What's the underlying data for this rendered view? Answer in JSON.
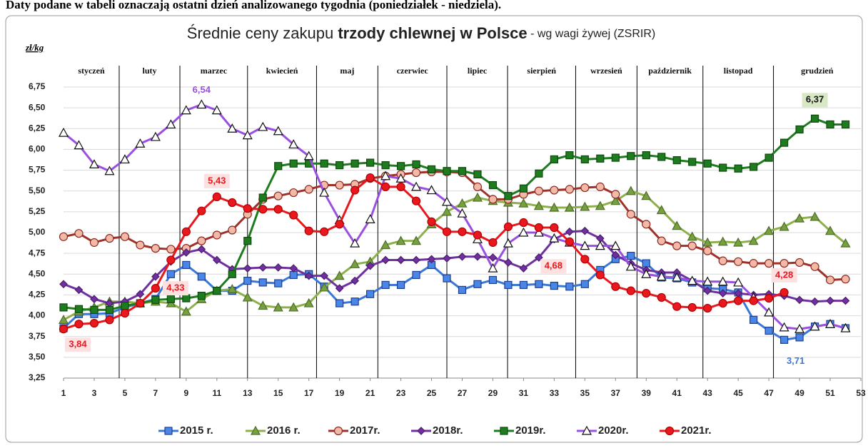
{
  "note_top": "Daty podane w tabeli oznaczają ostatni dzień analizowanego tygodnia (poniedziałek - niedziela).",
  "chart_data": {
    "type": "line",
    "title_start": "Średnie ceny zakupu ",
    "title_bold": "trzody chlewnej w Polsce",
    "title_end": " - wg wagi żywej (ZSRIR)",
    "y_label": "zł/kg",
    "months": [
      "styczeń",
      "luty",
      "marzec",
      "kwiecień",
      "maj",
      "czerwiec",
      "lipiec",
      "sierpień",
      "wrzesień",
      "październik",
      "listopad",
      "grudzień"
    ],
    "x": [
      1,
      2,
      3,
      4,
      5,
      6,
      7,
      8,
      9,
      10,
      11,
      12,
      13,
      14,
      15,
      16,
      17,
      18,
      19,
      20,
      21,
      22,
      23,
      24,
      25,
      26,
      27,
      28,
      29,
      30,
      31,
      32,
      33,
      34,
      35,
      36,
      37,
      38,
      39,
      40,
      41,
      42,
      43,
      44,
      45,
      46,
      47,
      48,
      49,
      50,
      51,
      52
    ],
    "xlim": [
      1,
      53
    ],
    "xticks": [
      1,
      3,
      5,
      7,
      9,
      11,
      13,
      15,
      17,
      19,
      21,
      23,
      25,
      27,
      29,
      31,
      33,
      35,
      37,
      39,
      41,
      43,
      45,
      47,
      49,
      51,
      53
    ],
    "ylim": [
      3.25,
      6.75
    ],
    "yticks": [
      {
        "value": 3.25,
        "label": "3,25"
      },
      {
        "value": 3.5,
        "label": "3,50"
      },
      {
        "value": 3.75,
        "label": "3,75"
      },
      {
        "value": 4,
        "label": "4,00"
      },
      {
        "value": 4.25,
        "label": "4,25"
      },
      {
        "value": 4.5,
        "label": "4,50"
      },
      {
        "value": 4.75,
        "label": "4,75"
      },
      {
        "value": 5,
        "label": "5,00"
      },
      {
        "value": 5.25,
        "label": "5,25"
      },
      {
        "value": 5.5,
        "label": "5,50"
      },
      {
        "value": 5.75,
        "label": "5,75"
      },
      {
        "value": 6,
        "label": "6,00"
      },
      {
        "value": 6.25,
        "label": "6,25"
      },
      {
        "value": 6.5,
        "label": "6,50"
      },
      {
        "value": 6.75,
        "label": "6,75"
      }
    ],
    "grid": true,
    "series": [
      {
        "name": "2015 r.",
        "color": "#3a78d8",
        "marker": "square",
        "marker_fill": "#4a86e8",
        "marker_stroke": "#1f3f8f",
        "values": [
          3.85,
          4.02,
          4.02,
          4.03,
          4.1,
          4.15,
          4.2,
          4.5,
          4.61,
          4.47,
          4.3,
          4.3,
          4.42,
          4.4,
          4.39,
          4.49,
          4.5,
          4.35,
          4.15,
          4.17,
          4.26,
          4.37,
          4.37,
          4.49,
          4.61,
          4.45,
          4.31,
          4.38,
          4.43,
          4.37,
          4.37,
          4.38,
          4.36,
          4.35,
          4.38,
          4.55,
          4.68,
          4.72,
          4.63,
          4.46,
          4.45,
          4.4,
          4.33,
          4.32,
          4.28,
          3.95,
          3.82,
          3.71,
          3.74,
          3.87,
          3.9,
          3.85
        ],
        "value_labels": [
          null,
          null,
          null,
          null,
          null,
          null,
          null,
          null,
          null,
          null,
          null,
          null,
          null,
          null,
          null,
          null,
          null,
          null,
          null,
          null,
          null,
          null,
          null,
          null,
          null,
          null,
          null,
          null,
          null,
          null,
          null,
          null,
          null,
          null,
          null,
          null,
          null,
          null,
          null,
          null,
          null,
          null,
          null,
          null,
          null,
          null,
          null,
          "3,71",
          null,
          null,
          null,
          null
        ]
      },
      {
        "name": "2016 r.",
        "color": "#8db04b",
        "marker": "triangle",
        "marker_fill": "#77a040",
        "marker_stroke": "#4f6e28",
        "values": [
          3.95,
          4.05,
          4.1,
          4.17,
          4.17,
          4.15,
          4.17,
          4.15,
          4.05,
          4.2,
          4.3,
          4.32,
          4.22,
          4.12,
          4.1,
          4.1,
          4.15,
          4.34,
          4.48,
          4.62,
          4.65,
          4.85,
          4.9,
          4.9,
          5.1,
          5.25,
          5.35,
          5.42,
          5.38,
          5.36,
          5.35,
          5.32,
          5.3,
          5.3,
          5.31,
          5.32,
          5.38,
          5.5,
          5.44,
          5.27,
          5.08,
          4.95,
          4.88,
          4.89,
          4.88,
          4.9,
          5.02,
          5.07,
          5.17,
          5.19,
          5.02,
          4.87
        ]
      },
      {
        "name": "2017r.",
        "color": "#a0302a",
        "marker": "circle",
        "marker_fill": "#f2b8a8",
        "marker_stroke": "#8a2a20",
        "values": [
          4.95,
          4.99,
          4.88,
          4.93,
          4.95,
          4.85,
          4.81,
          4.8,
          4.81,
          4.9,
          4.97,
          5.03,
          5.22,
          5.4,
          5.44,
          5.48,
          5.52,
          5.57,
          5.57,
          5.58,
          5.65,
          5.68,
          5.7,
          5.72,
          5.73,
          5.73,
          5.72,
          5.55,
          5.4,
          5.4,
          5.46,
          5.5,
          5.51,
          5.52,
          5.54,
          5.55,
          5.46,
          5.22,
          5.1,
          4.9,
          4.84,
          4.84,
          4.78,
          4.66,
          4.65,
          4.63,
          4.63,
          4.63,
          4.64,
          4.59,
          4.43,
          4.44
        ]
      },
      {
        "name": "2018r.",
        "color": "#7030a0",
        "marker": "diamond",
        "marker_fill": "#7030a0",
        "marker_stroke": "#4b1d6e",
        "values": [
          4.38,
          4.31,
          4.2,
          4.15,
          4.17,
          4.26,
          4.47,
          4.65,
          4.76,
          4.8,
          4.67,
          4.56,
          4.57,
          4.58,
          4.58,
          4.57,
          4.48,
          4.48,
          4.33,
          4.42,
          4.6,
          4.67,
          4.67,
          4.67,
          4.68,
          4.69,
          4.71,
          4.71,
          4.7,
          4.64,
          4.57,
          4.7,
          4.92,
          5.01,
          5.02,
          4.93,
          4.73,
          4.63,
          4.55,
          4.52,
          4.52,
          4.42,
          4.3,
          4.27,
          4.27,
          4.25,
          4.26,
          4.24,
          4.19,
          4.17,
          4.18,
          4.18
        ]
      },
      {
        "name": "2019r.",
        "color": "#1e7b1e",
        "marker": "square",
        "marker_fill": "#1e7b1e",
        "marker_stroke": "#0f4a0f",
        "values": [
          4.1,
          4.08,
          4.07,
          4.07,
          4.12,
          4.15,
          4.19,
          4.2,
          4.21,
          4.24,
          4.3,
          4.5,
          4.9,
          5.42,
          5.8,
          5.83,
          5.83,
          5.83,
          5.81,
          5.83,
          5.84,
          5.81,
          5.8,
          5.82,
          5.76,
          5.74,
          5.74,
          5.7,
          5.57,
          5.44,
          5.53,
          5.71,
          5.88,
          5.93,
          5.88,
          5.89,
          5.9,
          5.92,
          5.93,
          5.91,
          5.87,
          5.85,
          5.83,
          5.78,
          5.77,
          5.79,
          5.9,
          6.08,
          6.24,
          6.37,
          6.3,
          6.3
        ],
        "value_labels": [
          null,
          null,
          null,
          null,
          null,
          null,
          null,
          null,
          null,
          null,
          null,
          null,
          null,
          null,
          null,
          null,
          null,
          null,
          null,
          null,
          null,
          null,
          null,
          null,
          null,
          null,
          null,
          null,
          null,
          null,
          null,
          null,
          null,
          null,
          null,
          null,
          null,
          null,
          null,
          null,
          null,
          null,
          null,
          null,
          null,
          null,
          null,
          null,
          null,
          "6,37",
          null,
          null
        ]
      },
      {
        "name": "2020r.",
        "color": "#9b4fe0",
        "marker": "triangle",
        "marker_fill": "#ffffff",
        "marker_stroke": "#111111",
        "values": [
          6.2,
          6.05,
          5.82,
          5.74,
          5.88,
          6.07,
          6.15,
          6.3,
          6.47,
          6.54,
          6.47,
          6.25,
          6.17,
          6.27,
          6.22,
          6.06,
          5.92,
          5.48,
          5.15,
          4.87,
          5.16,
          5.68,
          5.65,
          5.55,
          5.51,
          5.37,
          5.23,
          4.92,
          4.57,
          4.87,
          5.0,
          5.0,
          4.93,
          4.88,
          4.84,
          4.84,
          4.84,
          4.59,
          4.5,
          4.47,
          4.46,
          4.42,
          4.41,
          4.41,
          4.4,
          4.22,
          4.04,
          3.86,
          3.84,
          3.87,
          3.9,
          3.85
        ],
        "value_labels": [
          null,
          null,
          null,
          null,
          null,
          null,
          null,
          null,
          null,
          "6,54",
          null,
          null,
          null,
          null,
          null,
          null,
          null,
          null,
          null,
          null,
          null,
          null,
          null,
          null,
          null,
          null,
          null,
          null,
          null,
          null,
          null,
          null,
          null,
          null,
          null,
          null,
          null,
          null,
          null,
          null,
          null,
          null,
          null,
          null,
          null,
          null,
          null,
          null,
          null,
          null,
          null,
          null
        ]
      },
      {
        "name": "2021r.",
        "color": "#e8181e",
        "marker": "circle",
        "marker_fill": "#e8181e",
        "marker_stroke": "#b00000",
        "values": [
          3.84,
          3.9,
          3.91,
          3.95,
          4.03,
          4.15,
          4.33,
          4.67,
          5.01,
          5.26,
          5.43,
          5.36,
          5.29,
          5.28,
          5.28,
          5.21,
          5.02,
          5.01,
          5.1,
          5.51,
          5.66,
          5.55,
          5.55,
          5.38,
          5.13,
          5.01,
          5.01,
          4.97,
          4.88,
          5.07,
          5.12,
          5.06,
          5.06,
          4.89,
          4.68,
          4.49,
          4.35,
          4.3,
          4.27,
          4.22,
          4.11,
          4.1,
          4.09,
          4.15,
          4.18,
          4.18,
          4.21,
          4.28,
          null,
          null,
          null,
          null
        ],
        "value_labels": [
          "3,84",
          null,
          null,
          null,
          null,
          null,
          "4,33",
          null,
          null,
          null,
          "5,43",
          null,
          null,
          null,
          null,
          null,
          null,
          null,
          null,
          null,
          null,
          null,
          null,
          null,
          null,
          null,
          null,
          null,
          null,
          null,
          null,
          null,
          null,
          null,
          "4,68",
          null,
          null,
          null,
          null,
          null,
          null,
          null,
          null,
          null,
          null,
          null,
          null,
          "4,28",
          null,
          null,
          null,
          null
        ]
      }
    ]
  }
}
